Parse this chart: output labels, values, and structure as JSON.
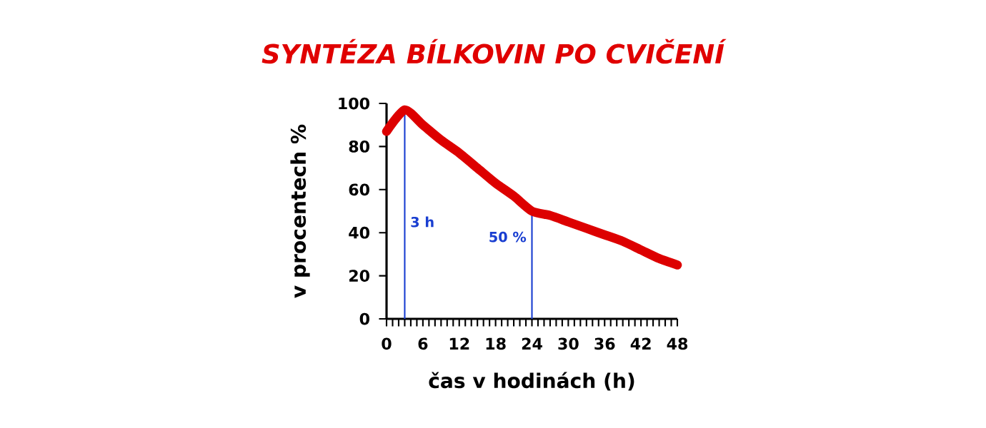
{
  "chart_data": {
    "type": "line",
    "title": "SYNTÉZA BÍLKOVIN PO CVIČENÍ",
    "xlabel": "čas v hodinách (h)",
    "ylabel": "v procentech %",
    "series": [
      {
        "color": "#dd0000",
        "x": [
          0,
          3,
          6,
          9,
          12,
          15,
          18,
          21,
          24,
          27,
          30,
          33,
          36,
          39,
          42,
          45,
          48
        ],
        "values": [
          87,
          97,
          90,
          83,
          77,
          70,
          63,
          57,
          50,
          48,
          45,
          42,
          39,
          36,
          32,
          28,
          25
        ]
      }
    ],
    "xlim": [
      0,
      48
    ],
    "xticks": [
      0,
      6,
      12,
      18,
      24,
      30,
      36,
      42,
      48
    ],
    "ylim": [
      0,
      100
    ],
    "yticks": [
      0,
      20,
      40,
      60,
      80,
      100
    ],
    "ref_lines": [
      {
        "axis": "x",
        "value": 3,
        "label": "3 h",
        "color": "#1a3fd1"
      },
      {
        "axis": "x",
        "value": 24,
        "color": "#1a3fd1"
      }
    ],
    "annotations": [
      {
        "text": "50 %",
        "x": 24,
        "y": 50
      }
    ],
    "grid": false,
    "marker": "none",
    "line_style": "solid"
  }
}
